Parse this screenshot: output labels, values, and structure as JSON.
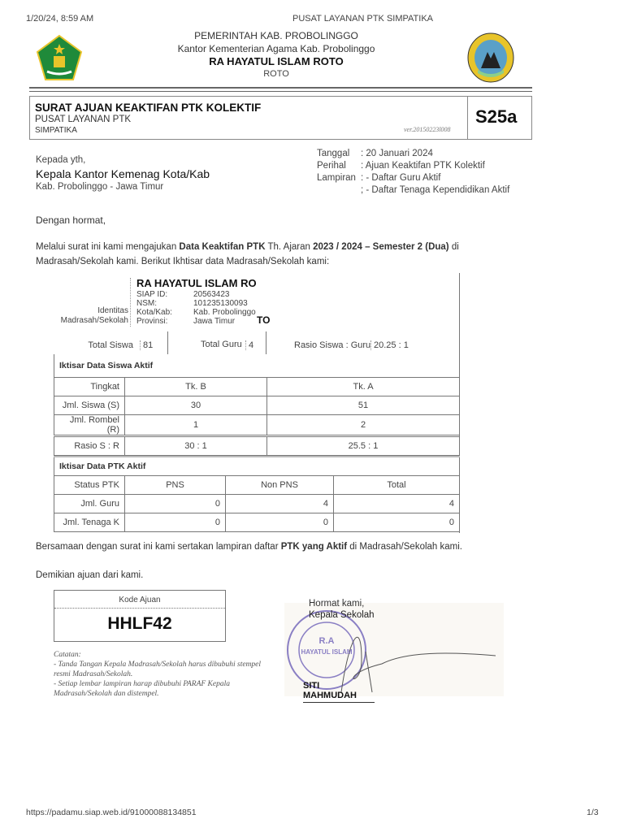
{
  "browser_header": {
    "datetime": "1/20/24, 8:59 AM",
    "page_title": "PUSAT LAYANAN PTK SIMPATIKA"
  },
  "letterhead": {
    "line1": "PEMERINTAH KAB. PROBOLINGGO",
    "line2": "Kantor Kementerian Agama Kab. Probolinggo",
    "school": "RA HAYATUL ISLAM ROTO",
    "address": "ROTO",
    "left_logo": "kemenag-logo",
    "right_logo": "school-emblem"
  },
  "form_title": {
    "title": "SURAT AJUAN KEAKTIFAN PTK KOLEKTIF",
    "sub1": "PUSAT LAYANAN PTK",
    "sub2": "SIMPATIKA",
    "version": "ver.20150223l008",
    "code": "S25a"
  },
  "recipient": {
    "kepada": "Kepada yth,",
    "name": "Kepala Kantor Kemenag Kota/Kab",
    "region": "Kab. Probolinggo - Jawa Timur"
  },
  "meta": {
    "tanggal_label": "Tanggal",
    "tanggal": ": 20 Januari 2024",
    "perihal_label": "Perihal",
    "perihal": ": Ajuan Keaktifan PTK Kolektif",
    "lampiran_label": "Lampiran",
    "lampiran1": ": - Daftar Guru Aktif",
    "lampiran2": "; - Daftar Tenaga Kependidikan Aktif"
  },
  "body": {
    "greeting": "Dengan hormat,",
    "p1_a": "Melalui surat ini kami mengajukan ",
    "p1_b": "Data Keaktifan PTK",
    "p1_c": " Th. Ajaran ",
    "p1_d": "2023 / 2024 – Semester 2",
    "p1_e": " (Dua)",
    "p1_f": " di",
    "p1_line2": "Madrasah/Sekolah kami. Berikut Ikhtisar data Madrasah/Sekolah kami:",
    "closing1_a": "Bersamaan dengan surat ini kami sertakan lampiran daftar ",
    "closing1_b": "PTK yang Aktif",
    "closing1_c": " di Madrasah/Sekolah kami.",
    "closing2": "Demikian ajuan dari kami."
  },
  "identity": {
    "label1": "Identitas",
    "label2": "Madrasah/Sekolah",
    "name": "RA HAYATUL ISLAM RO",
    "name_overflow": "TO",
    "siap_label": "SIAP ID:",
    "siap": "20563423",
    "nsm_label": "NSM:",
    "nsm": "101235130093",
    "kota_label": "Kota/Kab:",
    "kota": "Kab. Probolinggo",
    "prov_label": "Provinsi:",
    "prov": "Jawa Timur",
    "total_siswa_label": "Total Siswa",
    "total_siswa": "81",
    "total_guru_label": "Total Guru",
    "total_guru": "4",
    "rasio_label": "Rasio Siswa : Guru",
    "rasio": "20.25 : 1"
  },
  "siswa": {
    "title": "Iktisar Data Siswa Aktif",
    "rows": [
      {
        "label": "Tingkat",
        "a": "Tk. B",
        "b": "Tk. A"
      },
      {
        "label": "Jml. Siswa (S)",
        "a": "30",
        "b": "51"
      },
      {
        "label": "Jml. Rombel (R)",
        "a": "1",
        "b": "2"
      },
      {
        "label": "Rasio S : R",
        "a": "30 : 1",
        "b": "25.5 : 1"
      }
    ]
  },
  "ptk": {
    "title": "Iktisar Data PTK Aktif",
    "headers": [
      "Status PTK",
      "PNS",
      "Non PNS",
      "Total"
    ],
    "rows": [
      {
        "label": "Jml. Guru",
        "pns": "0",
        "nonpns": "4",
        "total": "4"
      },
      {
        "label": "Jml. Tenaga K",
        "pns": "0",
        "nonpns": "0",
        "total": "0"
      }
    ]
  },
  "kode": {
    "label": "Kode Ajuan",
    "value": "HHLF42"
  },
  "catatan": {
    "title": "Catatan:",
    "l1": "- Tanda Tangan Kepala Madrasah/Sekolah harus dibubuhi stempel",
    "l2": "resmi Madrasah/Sekolah.",
    "l3": "- Setiap lembar lampiran harap dibubuhi PARAF Kepala",
    "l4": "Madrasah/Sekolah dan distempel."
  },
  "signature": {
    "hormat": "Hormat kami,",
    "role": "Kepala Sekolah",
    "name": "SITI MAHMUDAH",
    "stamp": "R.A HAYATUL ISLAM"
  },
  "footer": {
    "url": "https://padamu.siap.web.id/91000088134851",
    "page": "1/3"
  },
  "colors": {
    "logo_green": "#1f8a3a",
    "logo_yellow": "#e8c42a",
    "stamp": "#8a7fc4"
  }
}
